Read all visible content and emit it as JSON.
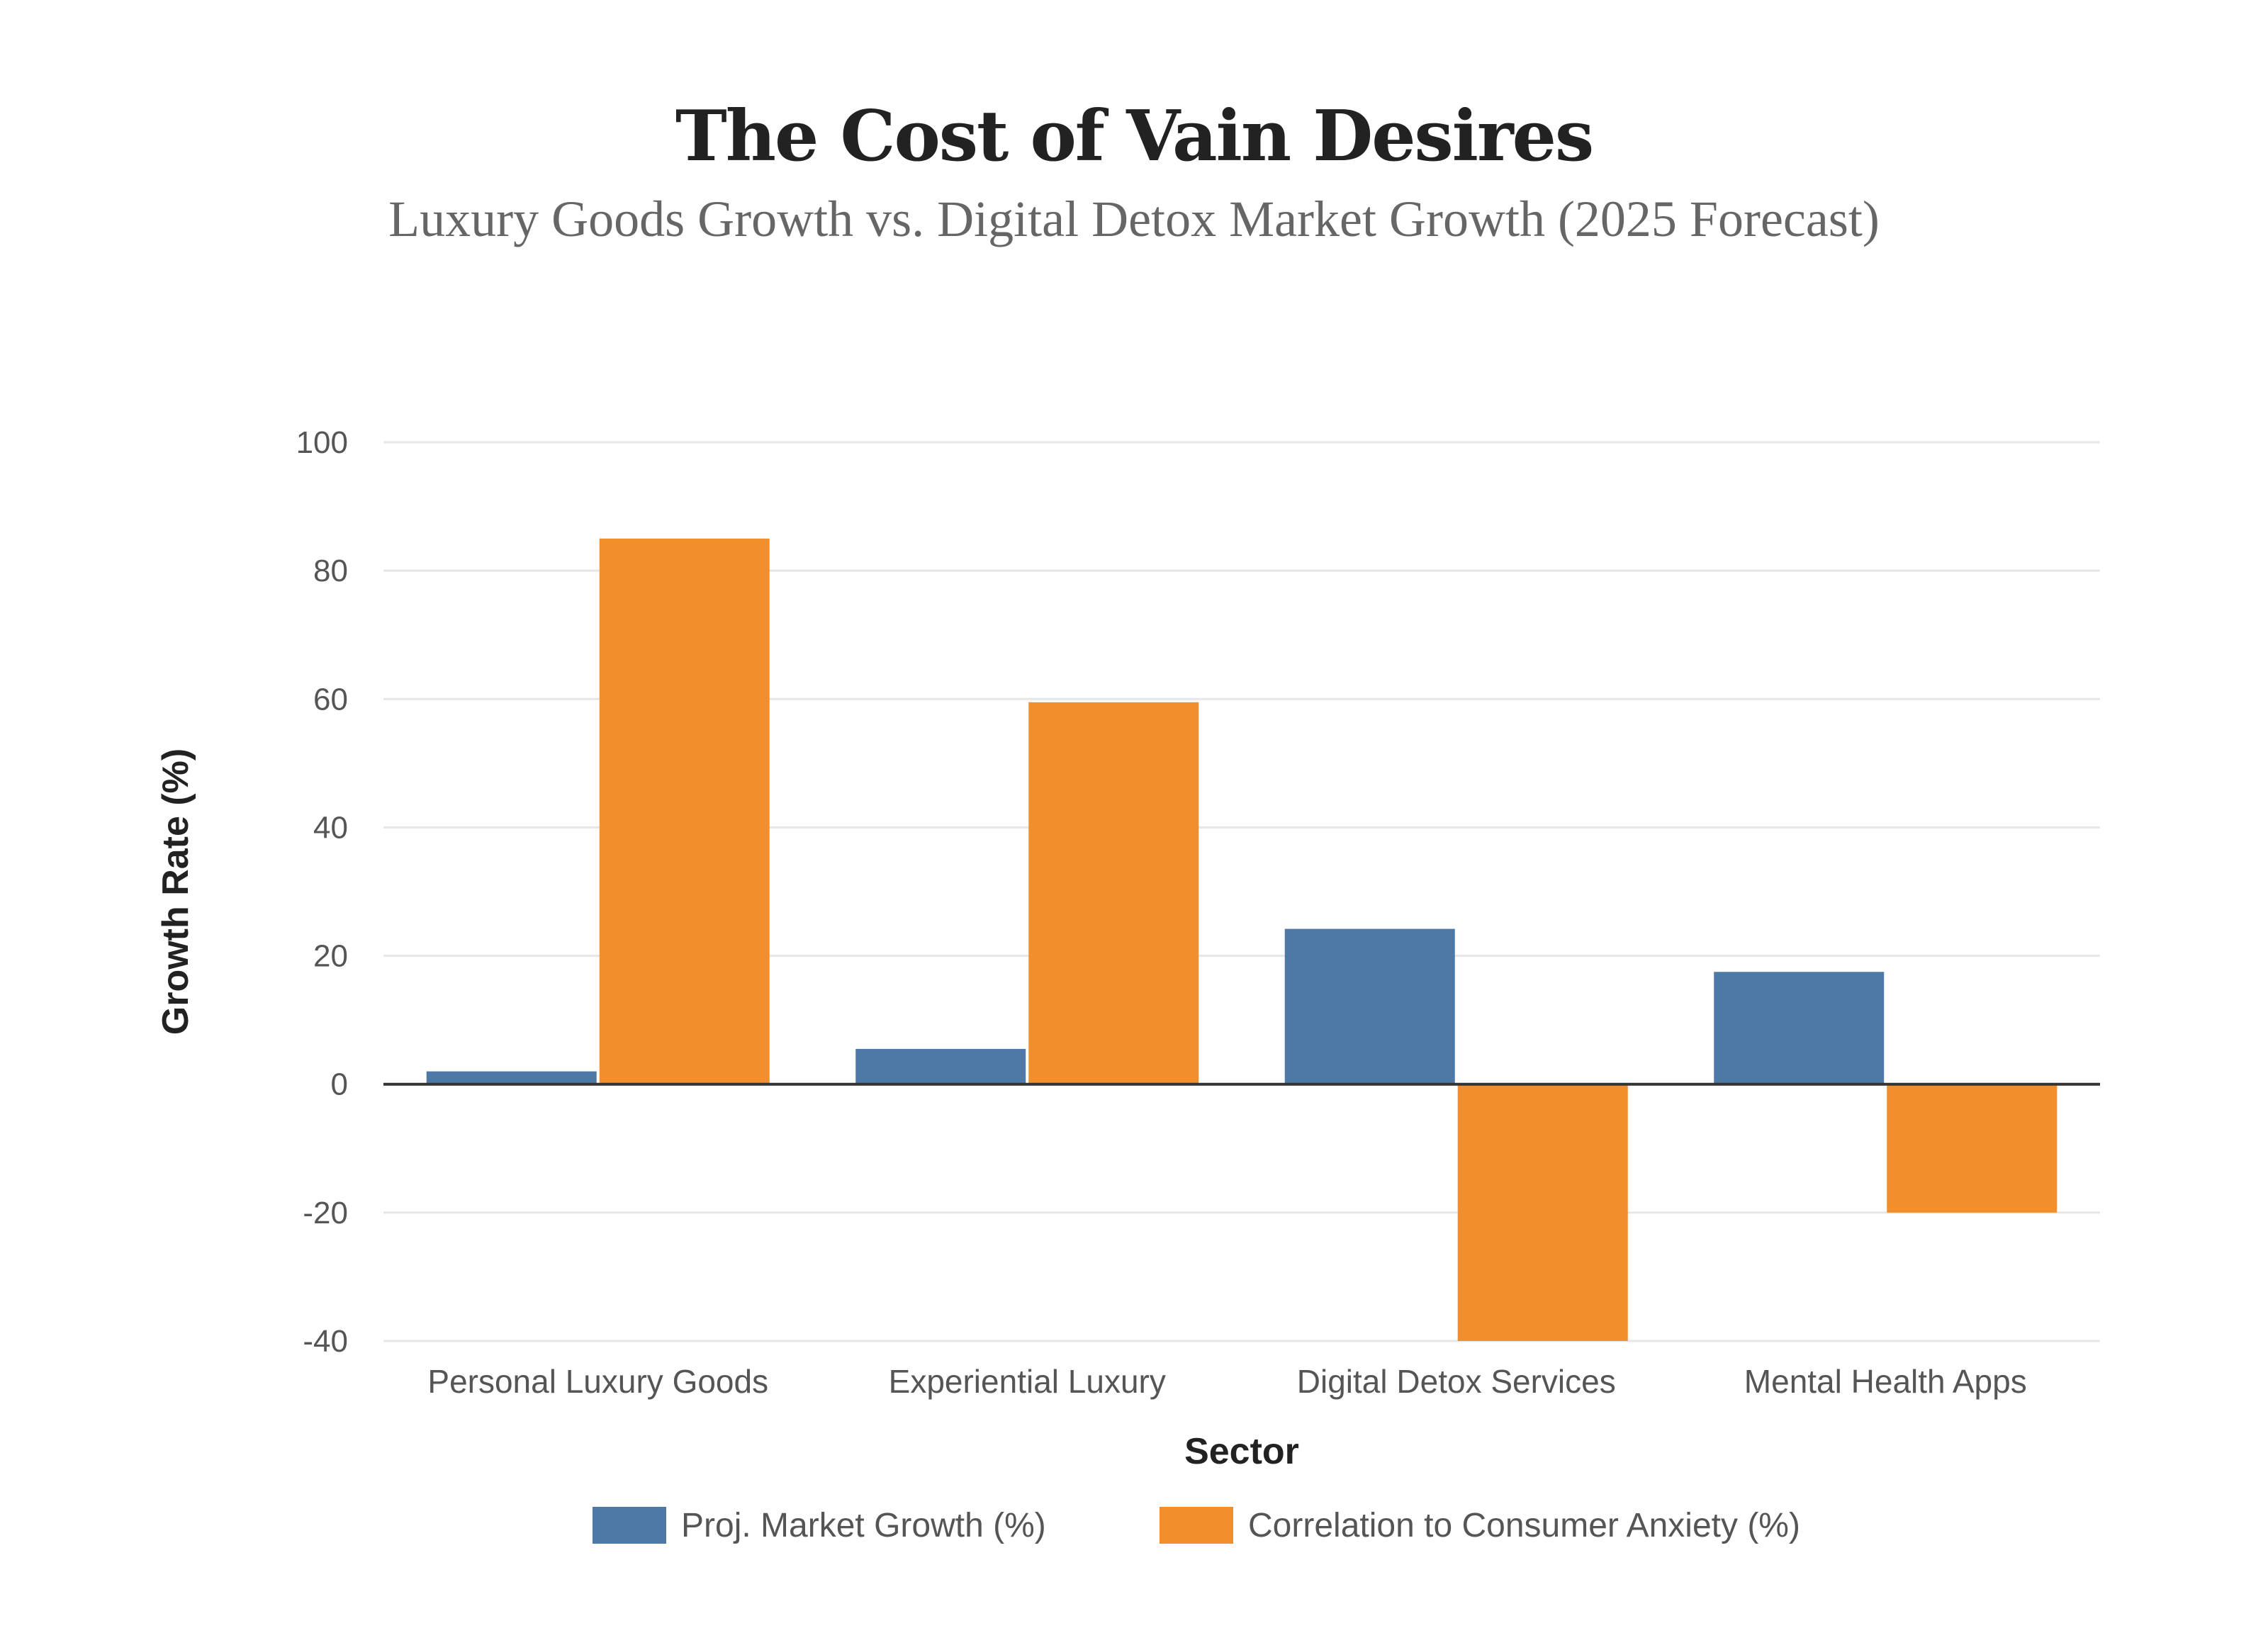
{
  "chart_data": {
    "type": "bar",
    "title": "The Cost of Vain Desires",
    "subtitle": "Luxury Goods Growth vs. Digital Detox Market Growth (2025 Forecast)",
    "xlabel": "Sector",
    "ylabel": "Growth Rate (%)",
    "categories": [
      "Personal Luxury Goods",
      "Experiential Luxury",
      "Digital Detox Services",
      "Mental Health Apps"
    ],
    "series": [
      {
        "name": "Proj. Market Growth (%)",
        "color": "#4e79a7",
        "values": [
          2,
          5.5,
          24.2,
          17.5
        ]
      },
      {
        "name": "Correlation to Consumer Anxiety (%)",
        "color": "#f28e2b",
        "values": [
          85,
          59.5,
          -40,
          -20
        ]
      }
    ],
    "ylim": [
      -40,
      100
    ],
    "yticks": [
      -40,
      -20,
      0,
      20,
      40,
      60,
      80,
      100
    ],
    "grid": true,
    "legend": "bottom-center"
  }
}
